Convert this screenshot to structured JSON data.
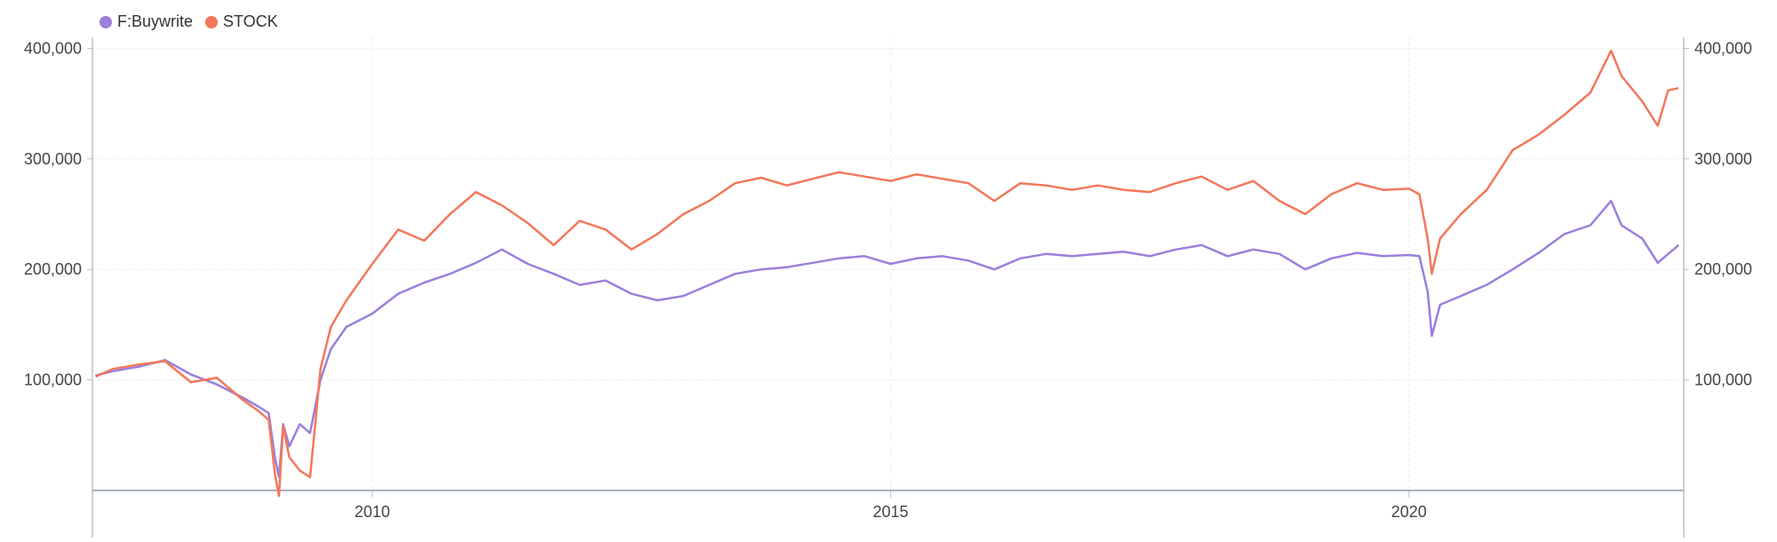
{
  "chart_data": {
    "type": "line",
    "title": "",
    "xlabel": "",
    "ylabel": "",
    "x_axis": {
      "min": 2007.3,
      "max": 2022.65,
      "ticks": [
        2010,
        2015,
        2020
      ],
      "tick_labels": [
        "2010",
        "2015",
        "2020"
      ]
    },
    "y_axis": {
      "min": 0,
      "max": 410000,
      "ticks": [
        100000,
        200000,
        300000,
        400000
      ],
      "tick_labels": [
        "100,000",
        "200,000",
        "300,000",
        "400,000"
      ],
      "mirrored_right": true
    },
    "grid": true,
    "legend_position": "top-left",
    "series": [
      {
        "name": "F:Buywrite",
        "color": "#9b7fdc",
        "points": [
          [
            2007.33,
            104000
          ],
          [
            2007.5,
            108000
          ],
          [
            2007.75,
            112000
          ],
          [
            2008.0,
            118000
          ],
          [
            2008.25,
            105000
          ],
          [
            2008.5,
            96000
          ],
          [
            2008.75,
            84000
          ],
          [
            2008.9,
            76000
          ],
          [
            2009.0,
            70000
          ],
          [
            2009.06,
            30000
          ],
          [
            2009.1,
            12000
          ],
          [
            2009.14,
            60000
          ],
          [
            2009.2,
            40000
          ],
          [
            2009.3,
            60000
          ],
          [
            2009.4,
            52000
          ],
          [
            2009.5,
            100000
          ],
          [
            2009.6,
            128000
          ],
          [
            2009.75,
            148000
          ],
          [
            2010.0,
            160000
          ],
          [
            2010.25,
            178000
          ],
          [
            2010.5,
            188000
          ],
          [
            2010.75,
            196000
          ],
          [
            2011.0,
            206000
          ],
          [
            2011.25,
            218000
          ],
          [
            2011.5,
            205000
          ],
          [
            2011.75,
            196000
          ],
          [
            2012.0,
            186000
          ],
          [
            2012.25,
            190000
          ],
          [
            2012.5,
            178000
          ],
          [
            2012.75,
            172000
          ],
          [
            2013.0,
            176000
          ],
          [
            2013.25,
            186000
          ],
          [
            2013.5,
            196000
          ],
          [
            2013.75,
            200000
          ],
          [
            2014.0,
            202000
          ],
          [
            2014.25,
            206000
          ],
          [
            2014.5,
            210000
          ],
          [
            2014.75,
            212000
          ],
          [
            2015.0,
            205000
          ],
          [
            2015.25,
            210000
          ],
          [
            2015.5,
            212000
          ],
          [
            2015.75,
            208000
          ],
          [
            2016.0,
            200000
          ],
          [
            2016.25,
            210000
          ],
          [
            2016.5,
            214000
          ],
          [
            2016.75,
            212000
          ],
          [
            2017.0,
            214000
          ],
          [
            2017.25,
            216000
          ],
          [
            2017.5,
            212000
          ],
          [
            2017.75,
            218000
          ],
          [
            2018.0,
            222000
          ],
          [
            2018.25,
            212000
          ],
          [
            2018.5,
            218000
          ],
          [
            2018.75,
            214000
          ],
          [
            2019.0,
            200000
          ],
          [
            2019.25,
            210000
          ],
          [
            2019.5,
            215000
          ],
          [
            2019.75,
            212000
          ],
          [
            2020.0,
            213000
          ],
          [
            2020.1,
            212000
          ],
          [
            2020.18,
            180000
          ],
          [
            2020.22,
            140000
          ],
          [
            2020.3,
            168000
          ],
          [
            2020.5,
            176000
          ],
          [
            2020.75,
            186000
          ],
          [
            2021.0,
            200000
          ],
          [
            2021.25,
            215000
          ],
          [
            2021.5,
            232000
          ],
          [
            2021.75,
            240000
          ],
          [
            2021.95,
            262000
          ],
          [
            2022.05,
            240000
          ],
          [
            2022.25,
            228000
          ],
          [
            2022.4,
            206000
          ],
          [
            2022.5,
            214000
          ],
          [
            2022.6,
            222000
          ]
        ]
      },
      {
        "name": "STOCK",
        "color": "#f4775a",
        "points": [
          [
            2007.33,
            103000
          ],
          [
            2007.5,
            110000
          ],
          [
            2007.75,
            114000
          ],
          [
            2008.0,
            117000
          ],
          [
            2008.25,
            98000
          ],
          [
            2008.5,
            102000
          ],
          [
            2008.75,
            82000
          ],
          [
            2008.9,
            72000
          ],
          [
            2009.0,
            64000
          ],
          [
            2009.06,
            15000
          ],
          [
            2009.1,
            -5000
          ],
          [
            2009.14,
            58000
          ],
          [
            2009.2,
            30000
          ],
          [
            2009.3,
            18000
          ],
          [
            2009.4,
            12000
          ],
          [
            2009.5,
            110000
          ],
          [
            2009.6,
            148000
          ],
          [
            2009.75,
            172000
          ],
          [
            2010.0,
            205000
          ],
          [
            2010.25,
            236000
          ],
          [
            2010.5,
            226000
          ],
          [
            2010.75,
            250000
          ],
          [
            2011.0,
            270000
          ],
          [
            2011.25,
            258000
          ],
          [
            2011.5,
            242000
          ],
          [
            2011.75,
            222000
          ],
          [
            2012.0,
            244000
          ],
          [
            2012.25,
            236000
          ],
          [
            2012.5,
            218000
          ],
          [
            2012.75,
            232000
          ],
          [
            2013.0,
            250000
          ],
          [
            2013.25,
            262000
          ],
          [
            2013.5,
            278000
          ],
          [
            2013.75,
            283000
          ],
          [
            2014.0,
            276000
          ],
          [
            2014.25,
            282000
          ],
          [
            2014.5,
            288000
          ],
          [
            2014.75,
            284000
          ],
          [
            2015.0,
            280000
          ],
          [
            2015.25,
            286000
          ],
          [
            2015.5,
            282000
          ],
          [
            2015.75,
            278000
          ],
          [
            2016.0,
            262000
          ],
          [
            2016.25,
            278000
          ],
          [
            2016.5,
            276000
          ],
          [
            2016.75,
            272000
          ],
          [
            2017.0,
            276000
          ],
          [
            2017.25,
            272000
          ],
          [
            2017.5,
            270000
          ],
          [
            2017.75,
            278000
          ],
          [
            2018.0,
            284000
          ],
          [
            2018.25,
            272000
          ],
          [
            2018.5,
            280000
          ],
          [
            2018.75,
            262000
          ],
          [
            2019.0,
            250000
          ],
          [
            2019.25,
            268000
          ],
          [
            2019.5,
            278000
          ],
          [
            2019.75,
            272000
          ],
          [
            2020.0,
            273000
          ],
          [
            2020.1,
            268000
          ],
          [
            2020.18,
            228000
          ],
          [
            2020.22,
            196000
          ],
          [
            2020.3,
            228000
          ],
          [
            2020.5,
            250000
          ],
          [
            2020.75,
            272000
          ],
          [
            2021.0,
            308000
          ],
          [
            2021.25,
            322000
          ],
          [
            2021.5,
            340000
          ],
          [
            2021.75,
            360000
          ],
          [
            2021.95,
            398000
          ],
          [
            2022.05,
            375000
          ],
          [
            2022.25,
            352000
          ],
          [
            2022.4,
            330000
          ],
          [
            2022.5,
            362000
          ],
          [
            2022.6,
            364000
          ]
        ]
      }
    ]
  }
}
